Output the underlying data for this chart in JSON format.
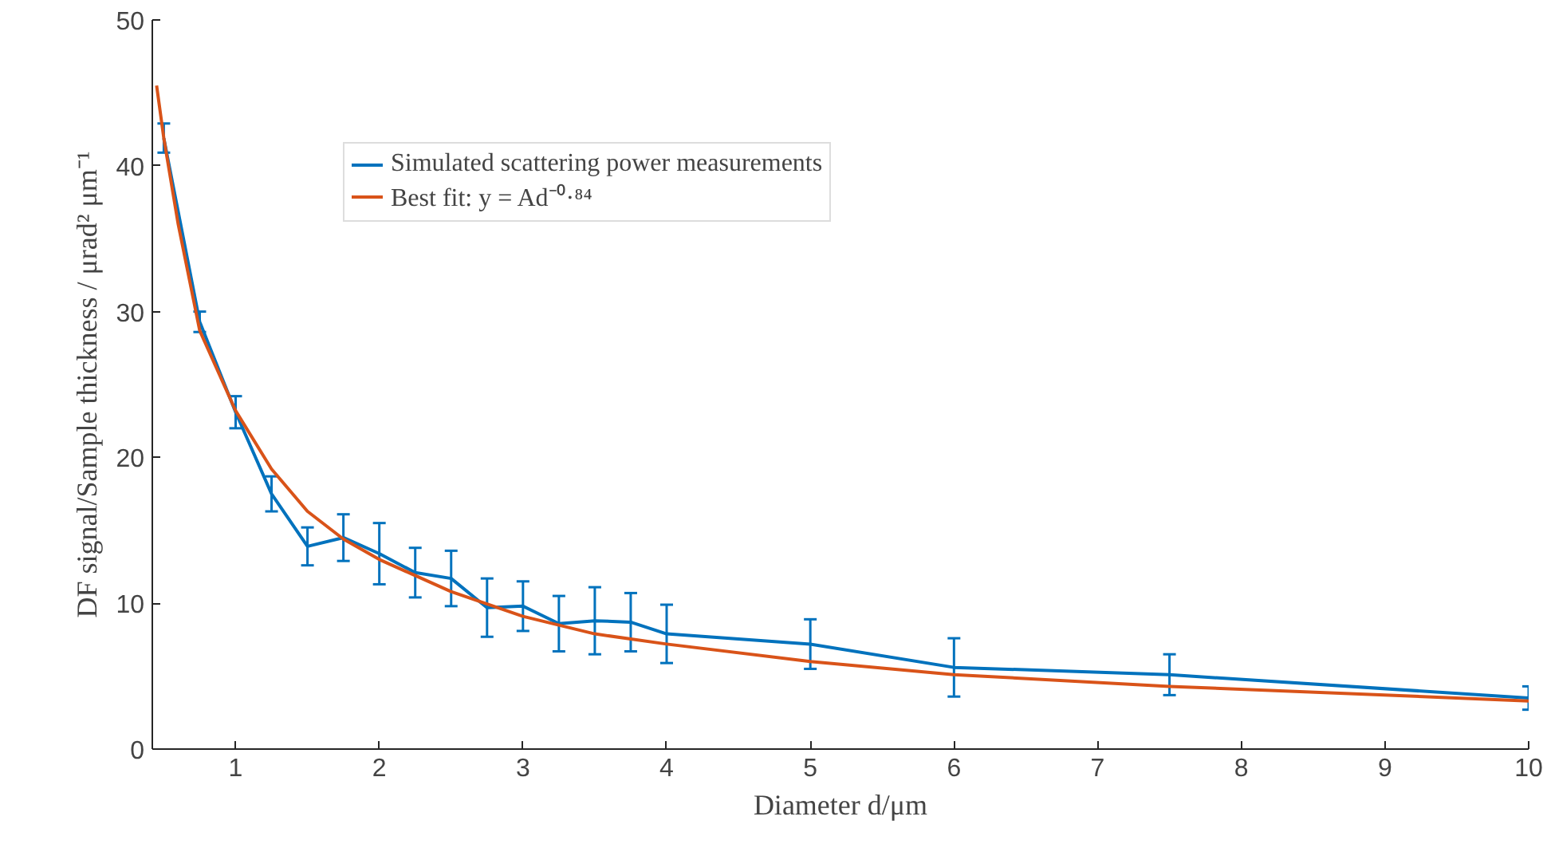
{
  "chart_data": {
    "type": "line",
    "xlabel": "Diameter d/μm",
    "ylabel": "DF signal/Sample thickness / μrad² μm⁻¹",
    "xlim": [
      0.42,
      10
    ],
    "ylim": [
      0,
      50
    ],
    "xticks": [
      1,
      2,
      3,
      4,
      5,
      6,
      7,
      8,
      9,
      10
    ],
    "yticks": [
      0,
      10,
      20,
      30,
      40,
      50
    ],
    "grid": false,
    "legend": "top left",
    "marker": "none",
    "line_style": "solid",
    "series": [
      {
        "name": "Simulated scattering power measurements",
        "color": "#0072bd",
        "x": [
          0.5,
          0.75,
          1,
          1.25,
          1.5,
          1.75,
          2,
          2.25,
          2.5,
          2.75,
          3,
          3.25,
          3.5,
          3.75,
          4,
          5,
          6,
          7.5,
          10
        ],
        "values": [
          41.9,
          29.3,
          23.1,
          17.5,
          13.9,
          14.5,
          13.4,
          12.1,
          11.7,
          9.7,
          9.8,
          8.6,
          8.8,
          8.7,
          7.9,
          7.2,
          5.6,
          5.1,
          3.5
        ],
        "errors": [
          1,
          0.7,
          1.1,
          1.2,
          1.3,
          1.6,
          2.1,
          1.7,
          1.9,
          2,
          1.7,
          1.9,
          2.3,
          2,
          2,
          1.7,
          2,
          1.4,
          0.8
        ]
      },
      {
        "name": "Best fit: y = Ad⁻⁰·⁸⁴",
        "color": "#d95319",
        "x": [
          0.45,
          0.5,
          0.6,
          0.75,
          1,
          1.25,
          1.5,
          1.75,
          2,
          2.5,
          3,
          3.5,
          4,
          5,
          6,
          7.5,
          10
        ],
        "values": [
          45.5,
          41.9,
          36,
          28.7,
          23.2,
          19.2,
          16.3,
          14.4,
          13,
          10.8,
          9.1,
          7.9,
          7.2,
          6,
          5.1,
          4.3,
          3.3
        ]
      }
    ]
  }
}
